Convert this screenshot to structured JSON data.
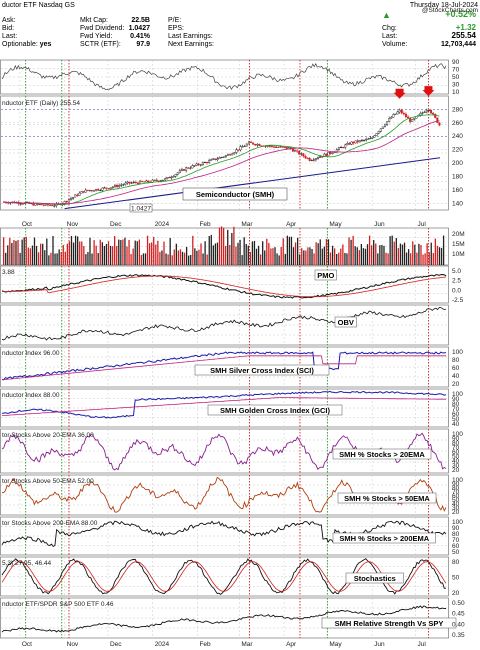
{
  "header": {
    "title_line": "ductor ETF  Nasdaq GS",
    "date": "Thursday 18-Jul-2024",
    "stockcharts": "@StockCharts.com",
    "fields_left": [
      {
        "label": "Ask:",
        "value": ""
      },
      {
        "label": "Bid:",
        "value": ""
      },
      {
        "label": "Last:",
        "value": ""
      },
      {
        "label": "Optionable:",
        "value": "yes"
      }
    ],
    "fields_mid": [
      {
        "label": "Mkt Cap:",
        "value": "22.5B"
      },
      {
        "label": "Fwd Dividend:",
        "value": "1.0427"
      },
      {
        "label": "Fwd Yield:",
        "value": "0.41%"
      },
      {
        "label": "SCTR (ETF):",
        "value": "97.9"
      }
    ],
    "fields_right": [
      {
        "label": "P/E:",
        "value": ""
      },
      {
        "label": "EPS:",
        "value": ""
      },
      {
        "label": "Last Earnings:",
        "value": ""
      },
      {
        "label": "Next Earnings:",
        "value": ""
      }
    ],
    "quote": [
      {
        "label": "",
        "value": "+0.52%"
      },
      {
        "label": "Chg:",
        "value": "+1.32"
      },
      {
        "label": "Last:",
        "value": "255.54"
      },
      {
        "label": "Volume:",
        "value": "12,703,444"
      }
    ]
  },
  "colors": {
    "up": "#2a9a2a",
    "down": "#d42020",
    "accent": "#1a1aa8",
    "grid": "#c8c8c8"
  },
  "chart_data": {
    "type": "multi-panel-stock-chart",
    "x_labels": [
      "Oct",
      "Nov",
      "Dec",
      "2024",
      "Feb",
      "Mar",
      "Apr",
      "May",
      "Jun",
      "Jul"
    ],
    "price_panel": {
      "label": "nductor ETF (Daily) 255.54",
      "title": "Semiconductor (SMH)",
      "low_marker": "1.0427",
      "y_ticks": [
        140,
        160,
        180,
        200,
        220,
        240,
        260,
        280
      ],
      "ylim": [
        130,
        300
      ],
      "close": [
        {
          "x": "Sep 20",
          "y": 142
        },
        {
          "x": "Oct 01",
          "y": 141
        },
        {
          "x": "Oct 13",
          "y": 138
        },
        {
          "x": "Oct 26",
          "y": 137
        },
        {
          "x": "Nov 01",
          "y": 142
        },
        {
          "x": "Nov 14",
          "y": 158
        },
        {
          "x": "Dec 01",
          "y": 163
        },
        {
          "x": "Dec 15",
          "y": 170
        },
        {
          "x": "Dec 29",
          "y": 172
        },
        {
          "x": "Jan 10",
          "y": 176
        },
        {
          "x": "Jan 24",
          "y": 192
        },
        {
          "x": "Feb 08",
          "y": 202
        },
        {
          "x": "Feb 22",
          "y": 212
        },
        {
          "x": "Mar 08",
          "y": 230
        },
        {
          "x": "Mar 22",
          "y": 225
        },
        {
          "x": "Apr 05",
          "y": 222
        },
        {
          "x": "Apr 19",
          "y": 205
        },
        {
          "x": "May 03",
          "y": 215
        },
        {
          "x": "May 17",
          "y": 230
        },
        {
          "x": "May 31",
          "y": 236
        },
        {
          "x": "Jun 14",
          "y": 268
        },
        {
          "x": "Jun 20",
          "y": 278
        },
        {
          "x": "Jun 28",
          "y": 262
        },
        {
          "x": "Jul 10",
          "y": 282
        },
        {
          "x": "Jul 18",
          "y": 255.54
        }
      ],
      "arrows": [
        "Jun 20",
        "Jul 10"
      ]
    },
    "volume_panel": {
      "y_ticks": [
        "20M",
        "15M",
        "10M"
      ]
    },
    "panels": [
      {
        "label": "3.88",
        "title": "PMO",
        "y_ticks": [
          "5.0",
          "2.5",
          "0.0",
          "-2.5"
        ]
      },
      {
        "label": "",
        "title": "OBV",
        "y_ticks": []
      },
      {
        "label": "nductor Index 96.00",
        "title": "SMH Silver Cross Index (SCI)",
        "y_ticks": [
          "100",
          "80",
          "60",
          "40",
          "20"
        ]
      },
      {
        "label": "nductor Index 88.00",
        "title": "SMH Golden Cross Index (GCI)",
        "y_ticks": [
          "100",
          "90",
          "80",
          "70",
          "60",
          "50",
          "40"
        ]
      },
      {
        "label": "tor Stocks Above 20-EMA 36.00",
        "title": "SMH % Stocks > 20EMA",
        "y_ticks": [
          "100",
          "90",
          "80",
          "70",
          "60",
          "50",
          "40",
          "30",
          "20"
        ]
      },
      {
        "label": "tor Stocks Above 50-EMA 52.00",
        "title": "SMH % Stocks > 50EMA",
        "y_ticks": [
          "100",
          "90",
          "80",
          "70",
          "60",
          "50",
          "40",
          "30",
          "20"
        ]
      },
      {
        "label": "tor Stocks Above 200-EMA 88.00",
        "title": "SMH % Stocks > 200EMA",
        "y_ticks": [
          "100",
          "90",
          "80",
          "70",
          "60",
          "50"
        ]
      },
      {
        "label": "5,3) 27.95, 46.44",
        "title": "Stochastics",
        "y_ticks": [
          "80",
          "50",
          "20"
        ]
      },
      {
        "label": "nductor ETF/SPDR S&P 500 ETF 0.46",
        "title": "SMH Relative Strength Vs SPY",
        "y_ticks": [
          "0.50",
          "0.45",
          "0.40",
          "0.35"
        ]
      }
    ]
  }
}
